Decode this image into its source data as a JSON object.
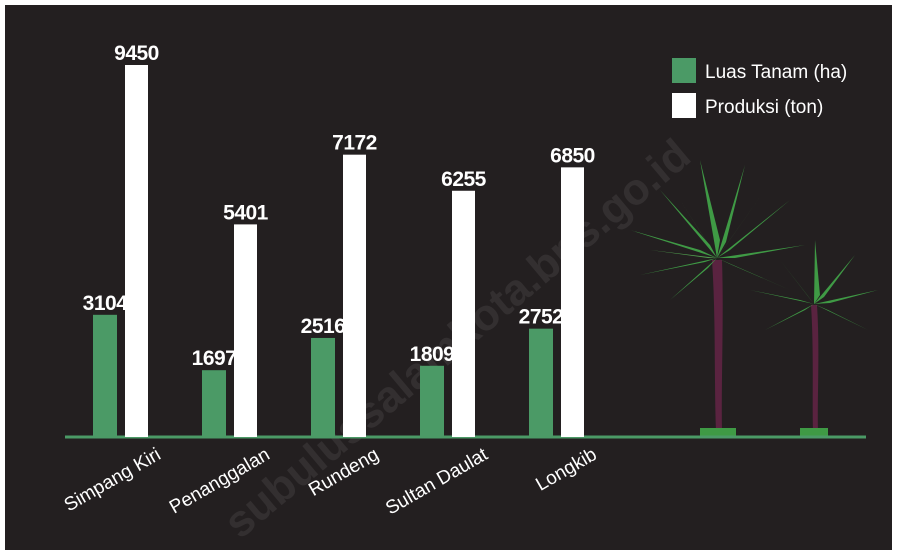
{
  "chart_data": {
    "type": "bar",
    "categories": [
      "Simpang Kiri",
      "Penanggalan",
      "Rundeng",
      "Sultan Daulat",
      "Longkib"
    ],
    "series": [
      {
        "name": "Luas Tanam (ha)",
        "color": "#4b9a66",
        "values": [
          3104,
          1697,
          2516,
          1809,
          2752
        ]
      },
      {
        "name": "Produksi (ton)",
        "color": "#ffffff",
        "values": [
          9450,
          5401,
          7172,
          6255,
          6850
        ]
      }
    ],
    "legend": "top-right",
    "watermark": "subulussalamkota.bps.go.id"
  }
}
